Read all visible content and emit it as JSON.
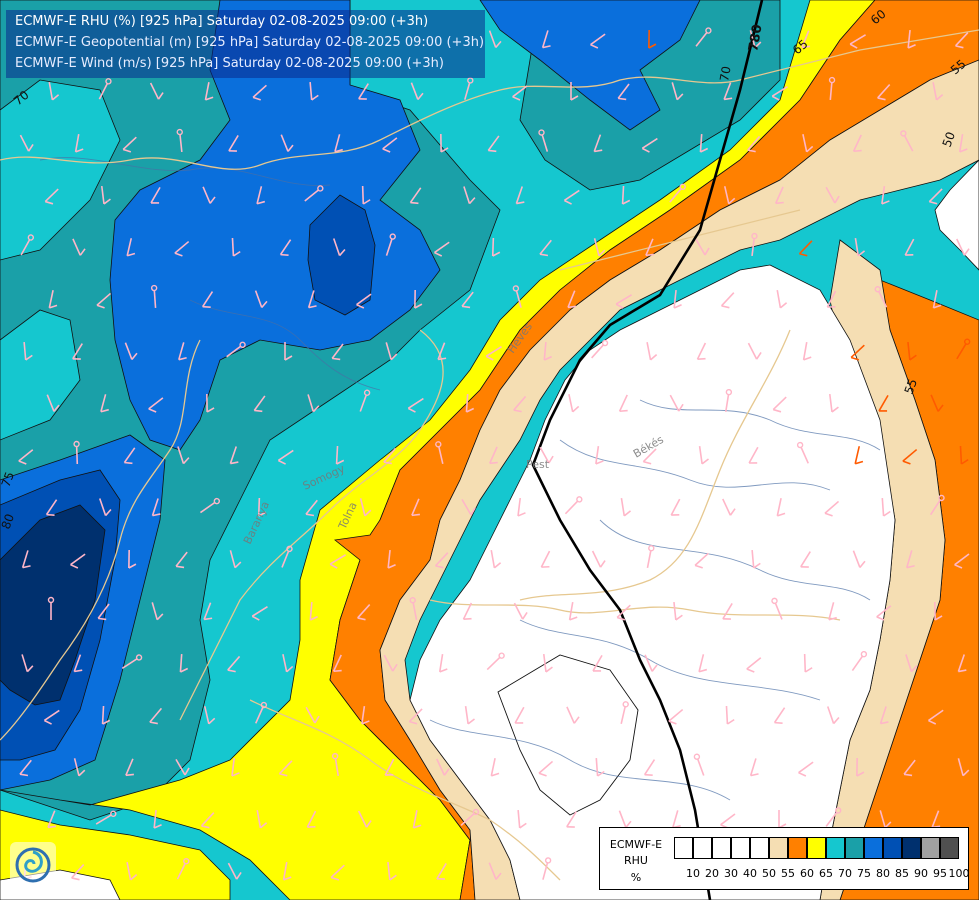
{
  "header": {
    "line1": "ECMWF-E RHU (%) [925 hPa] Saturday 02-08-2025 09:00 (+3h)",
    "line2": "ECMWF-E Geopotential (m) [925 hPa] Saturday 02-08-2025 09:00 (+3h)",
    "line3": "ECMWF-E Wind (m/s) [925 hPa] Saturday 02-08-2025 09:00 (+3h)"
  },
  "map": {
    "contour_labels": {
      "c70": "70",
      "c75": "75",
      "c80": "80",
      "c65": "65",
      "c60": "60",
      "c55a": "55",
      "c55b": "55",
      "c50": "50",
      "g780": "780",
      "g70": "70"
    },
    "place_labels": {
      "heves": "Heves",
      "bekes": "Békés",
      "pest": "Pest",
      "tolna": "Tolna",
      "somogy": "Somogy",
      "baranya": "Baranya"
    },
    "colors": {
      "r50": "#ffffff",
      "r55": "#f5deb3",
      "r60": "#ff8000",
      "r65": "#ffff00",
      "r70": "#15c7cf",
      "r75": "#1aa0a8",
      "r80": "#0a6fdc",
      "r85": "#0050b4",
      "r90": "#00306e",
      "wind_light": "#ffb6c8",
      "wind_strong": "#ff5a00",
      "border": "#e6c890",
      "river": "#4a6fa5"
    }
  },
  "legend": {
    "model": "ECMWF-E",
    "variable": "RHU",
    "unit": "%",
    "colors": [
      "#ffffff",
      "#ffffff",
      "#ffffff",
      "#ffffff",
      "#ffffff",
      "#f5deb3",
      "#ff8000",
      "#ffff00",
      "#15c7cf",
      "#1aa0a8",
      "#0a6fdc",
      "#0050b4",
      "#00306e",
      "#a0a0a0",
      "#505050"
    ],
    "ticks": [
      "10",
      "20",
      "30",
      "40",
      "50",
      "55",
      "60",
      "65",
      "70",
      "75",
      "80",
      "85",
      "90",
      "95",
      "100"
    ]
  },
  "logo": {
    "icon": "ecmwf-swirl-logo"
  }
}
